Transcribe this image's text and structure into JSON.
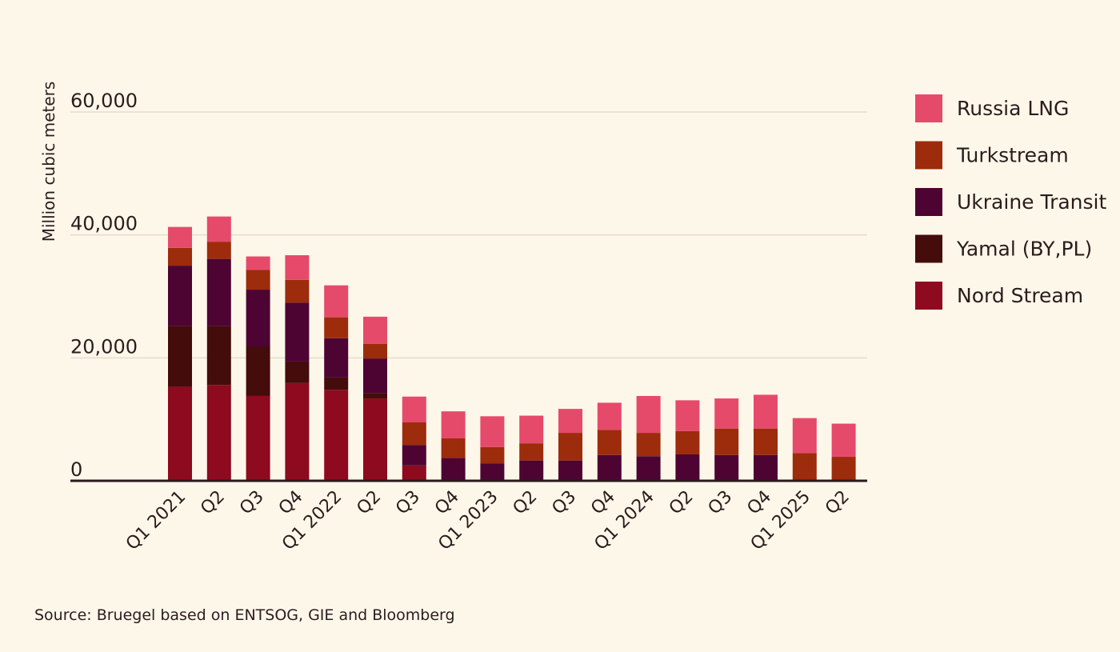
{
  "chart_data": {
    "type": "bar",
    "stacked": true,
    "title": "",
    "xlabel": "",
    "ylabel": "Million cubic meters",
    "ylim": [
      0,
      60000
    ],
    "yticks": [
      0,
      20000,
      40000,
      60000
    ],
    "ytick_labels": [
      "0",
      "20,000",
      "40,000",
      "60,000"
    ],
    "grid": true,
    "legend_position": "right",
    "categories": [
      "Q1 2021",
      "Q2",
      "Q3",
      "Q4",
      "Q1 2022",
      "Q2",
      "Q3",
      "Q4",
      "Q1 2023",
      "Q2",
      "Q3",
      "Q4",
      "Q1 2024",
      "Q2",
      "Q3",
      "Q4",
      "Q1 2025",
      "Q2"
    ],
    "series": [
      {
        "name": "Nord Stream",
        "color": "#8e0a1e",
        "values": [
          15300,
          15600,
          13800,
          15900,
          14800,
          13400,
          2500,
          0,
          0,
          0,
          0,
          0,
          0,
          0,
          0,
          0,
          0,
          0
        ]
      },
      {
        "name": "Yamal (BY,PL)",
        "color": "#450c0c",
        "values": [
          9900,
          9600,
          8000,
          3500,
          2000,
          900,
          0,
          0,
          0,
          0,
          0,
          0,
          0,
          0,
          0,
          0,
          0,
          0
        ]
      },
      {
        "name": "Ukraine Transit",
        "color": "#4d0433",
        "values": [
          9800,
          10900,
          9300,
          9600,
          6400,
          5600,
          3300,
          3700,
          2800,
          3300,
          3300,
          4200,
          4000,
          4300,
          4200,
          4200,
          0,
          0
        ]
      },
      {
        "name": "Turkstream",
        "color": "#9c2c0c",
        "values": [
          2900,
          2800,
          3200,
          3700,
          3400,
          2400,
          3700,
          3200,
          2700,
          2800,
          4500,
          4100,
          3800,
          3800,
          4300,
          4300,
          4500,
          3900
        ]
      },
      {
        "name": "Russia LNG",
        "color": "#e64a6a",
        "values": [
          3400,
          4100,
          2200,
          4000,
          5200,
          4400,
          4200,
          4400,
          5000,
          4500,
          3900,
          4400,
          6000,
          5000,
          4900,
          5500,
          5700,
          5400
        ]
      }
    ],
    "legend_order": [
      "Russia LNG",
      "Turkstream",
      "Ukraine Transit",
      "Yamal (BY,PL)",
      "Nord Stream"
    ]
  },
  "source_note": "Source: Bruegel based on ENTSOG, GIE and Bloomberg"
}
